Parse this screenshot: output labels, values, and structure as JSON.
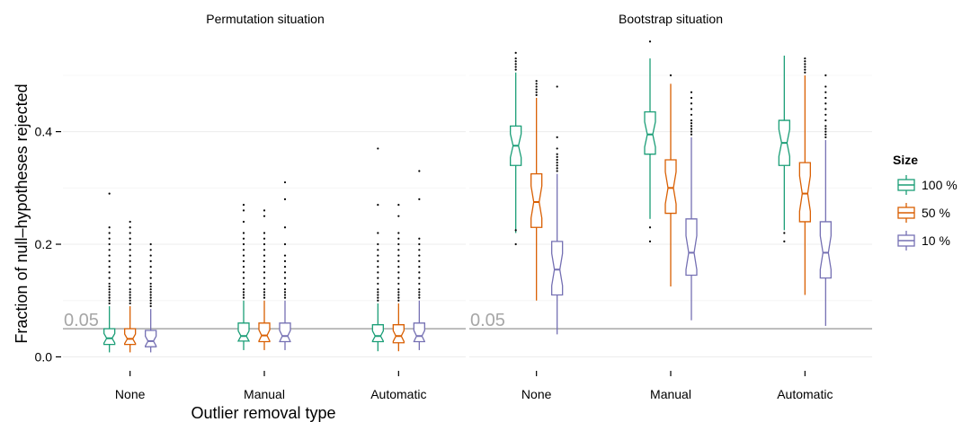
{
  "chart_data": {
    "type": "boxplot",
    "facet_titles": [
      "Permutation situation",
      "Bootstrap situation"
    ],
    "categories": [
      "None",
      "Manual",
      "Automatic"
    ],
    "xlabel": "Outlier removal type",
    "ylabel": "Fraction of null–hypotheses rejected",
    "ylim": [
      -0.02,
      0.57
    ],
    "yticks": [
      0.0,
      0.2,
      0.4
    ],
    "ytick_labels": [
      "0.0",
      "0.2",
      "0.4"
    ],
    "reference_line": {
      "value": 0.05,
      "label": "0.05",
      "color": "#a6a6a6"
    },
    "legend": {
      "title": "Size",
      "position": "right"
    },
    "grid": true,
    "series": [
      {
        "name": "100 %",
        "color": "#1b9e77"
      },
      {
        "name": "50 %",
        "color": "#d95f02"
      },
      {
        "name": "10 %",
        "color": "#7570b3"
      }
    ],
    "panels": [
      {
        "title": "Permutation situation",
        "groups": [
          {
            "category": "None",
            "boxes": [
              {
                "series": "100 %",
                "whisker_low": 0.008,
                "q1": 0.022,
                "median": 0.033,
                "q3": 0.05,
                "whisker_high": 0.09,
                "outliers": [
                  0.095,
                  0.1,
                  0.105,
                  0.11,
                  0.115,
                  0.12,
                  0.125,
                  0.13,
                  0.14,
                  0.15,
                  0.16,
                  0.17,
                  0.18,
                  0.19,
                  0.2,
                  0.21,
                  0.22,
                  0.23,
                  0.29
                ]
              },
              {
                "series": "50 %",
                "whisker_low": 0.008,
                "q1": 0.022,
                "median": 0.032,
                "q3": 0.05,
                "whisker_high": 0.09,
                "outliers": [
                  0.095,
                  0.1,
                  0.105,
                  0.11,
                  0.115,
                  0.12,
                  0.13,
                  0.14,
                  0.15,
                  0.16,
                  0.17,
                  0.18,
                  0.19,
                  0.2,
                  0.21,
                  0.22,
                  0.23,
                  0.24
                ]
              },
              {
                "series": "10 %",
                "whisker_low": 0.008,
                "q1": 0.018,
                "median": 0.028,
                "q3": 0.047,
                "whisker_high": 0.085,
                "outliers": [
                  0.09,
                  0.095,
                  0.1,
                  0.105,
                  0.11,
                  0.115,
                  0.12,
                  0.125,
                  0.13,
                  0.14,
                  0.15,
                  0.16,
                  0.17,
                  0.18,
                  0.19,
                  0.2
                ]
              }
            ]
          },
          {
            "category": "Manual",
            "boxes": [
              {
                "series": "100 %",
                "whisker_low": 0.012,
                "q1": 0.028,
                "median": 0.037,
                "q3": 0.06,
                "whisker_high": 0.1,
                "outliers": [
                  0.105,
                  0.11,
                  0.115,
                  0.12,
                  0.13,
                  0.14,
                  0.15,
                  0.16,
                  0.17,
                  0.18,
                  0.19,
                  0.2,
                  0.21,
                  0.22,
                  0.24,
                  0.26,
                  0.27
                ]
              },
              {
                "series": "50 %",
                "whisker_low": 0.012,
                "q1": 0.027,
                "median": 0.038,
                "q3": 0.06,
                "whisker_high": 0.1,
                "outliers": [
                  0.105,
                  0.11,
                  0.115,
                  0.12,
                  0.13,
                  0.14,
                  0.15,
                  0.16,
                  0.17,
                  0.18,
                  0.19,
                  0.2,
                  0.21,
                  0.22,
                  0.25,
                  0.26
                ]
              },
              {
                "series": "10 %",
                "whisker_low": 0.012,
                "q1": 0.027,
                "median": 0.037,
                "q3": 0.06,
                "whisker_high": 0.1,
                "outliers": [
                  0.105,
                  0.11,
                  0.115,
                  0.12,
                  0.13,
                  0.14,
                  0.15,
                  0.16,
                  0.17,
                  0.18,
                  0.2,
                  0.23,
                  0.28,
                  0.31
                ]
              }
            ]
          },
          {
            "category": "Automatic",
            "boxes": [
              {
                "series": "100 %",
                "whisker_low": 0.01,
                "q1": 0.027,
                "median": 0.037,
                "q3": 0.057,
                "whisker_high": 0.095,
                "outliers": [
                  0.1,
                  0.105,
                  0.11,
                  0.115,
                  0.12,
                  0.13,
                  0.14,
                  0.15,
                  0.16,
                  0.17,
                  0.18,
                  0.19,
                  0.2,
                  0.22,
                  0.27,
                  0.37
                ]
              },
              {
                "series": "50 %",
                "whisker_low": 0.01,
                "q1": 0.025,
                "median": 0.037,
                "q3": 0.057,
                "whisker_high": 0.095,
                "outliers": [
                  0.1,
                  0.105,
                  0.11,
                  0.115,
                  0.12,
                  0.13,
                  0.14,
                  0.15,
                  0.16,
                  0.17,
                  0.18,
                  0.19,
                  0.2,
                  0.21,
                  0.22,
                  0.25,
                  0.27
                ]
              },
              {
                "series": "10 %",
                "whisker_low": 0.012,
                "q1": 0.027,
                "median": 0.037,
                "q3": 0.06,
                "whisker_high": 0.1,
                "outliers": [
                  0.105,
                  0.11,
                  0.115,
                  0.12,
                  0.13,
                  0.14,
                  0.15,
                  0.16,
                  0.17,
                  0.18,
                  0.19,
                  0.2,
                  0.21,
                  0.28,
                  0.33
                ]
              }
            ]
          }
        ]
      },
      {
        "title": "Bootstrap situation",
        "groups": [
          {
            "category": "None",
            "boxes": [
              {
                "series": "100 %",
                "whisker_low": 0.22,
                "q1": 0.34,
                "median": 0.375,
                "q3": 0.41,
                "whisker_high": 0.505,
                "outliers": [
                  0.2,
                  0.225,
                  0.51,
                  0.515,
                  0.52,
                  0.525,
                  0.53,
                  0.54
                ]
              },
              {
                "series": "50 %",
                "whisker_low": 0.1,
                "q1": 0.23,
                "median": 0.275,
                "q3": 0.325,
                "whisker_high": 0.46,
                "outliers": [
                  0.465,
                  0.47,
                  0.475,
                  0.48,
                  0.485,
                  0.49
                ]
              },
              {
                "series": "10 %",
                "whisker_low": 0.04,
                "q1": 0.11,
                "median": 0.155,
                "q3": 0.205,
                "whisker_high": 0.325,
                "outliers": [
                  0.33,
                  0.335,
                  0.34,
                  0.345,
                  0.35,
                  0.355,
                  0.36,
                  0.37,
                  0.39,
                  0.48
                ]
              }
            ]
          },
          {
            "category": "Manual",
            "boxes": [
              {
                "series": "100 %",
                "whisker_low": 0.245,
                "q1": 0.36,
                "median": 0.395,
                "q3": 0.435,
                "whisker_high": 0.53,
                "outliers": [
                  0.205,
                  0.23,
                  0.56
                ]
              },
              {
                "series": "50 %",
                "whisker_low": 0.125,
                "q1": 0.255,
                "median": 0.3,
                "q3": 0.35,
                "whisker_high": 0.485,
                "outliers": [
                  0.5
                ]
              },
              {
                "series": "10 %",
                "whisker_low": 0.065,
                "q1": 0.145,
                "median": 0.185,
                "q3": 0.245,
                "whisker_high": 0.39,
                "outliers": [
                  0.395,
                  0.4,
                  0.405,
                  0.41,
                  0.415,
                  0.42,
                  0.43,
                  0.44,
                  0.45,
                  0.46,
                  0.47
                ]
              }
            ]
          },
          {
            "category": "Automatic",
            "boxes": [
              {
                "series": "100 %",
                "whisker_low": 0.225,
                "q1": 0.34,
                "median": 0.38,
                "q3": 0.42,
                "whisker_high": 0.535,
                "outliers": [
                  0.205,
                  0.22
                ]
              },
              {
                "series": "50 %",
                "whisker_low": 0.11,
                "q1": 0.24,
                "median": 0.29,
                "q3": 0.345,
                "whisker_high": 0.5,
                "outliers": [
                  0.505,
                  0.51,
                  0.515,
                  0.52,
                  0.525,
                  0.53
                ]
              },
              {
                "series": "10 %",
                "whisker_low": 0.055,
                "q1": 0.14,
                "median": 0.185,
                "q3": 0.24,
                "whisker_high": 0.385,
                "outliers": [
                  0.39,
                  0.395,
                  0.4,
                  0.405,
                  0.41,
                  0.42,
                  0.43,
                  0.44,
                  0.45,
                  0.46,
                  0.47,
                  0.48,
                  0.5
                ]
              }
            ]
          }
        ]
      }
    ]
  }
}
